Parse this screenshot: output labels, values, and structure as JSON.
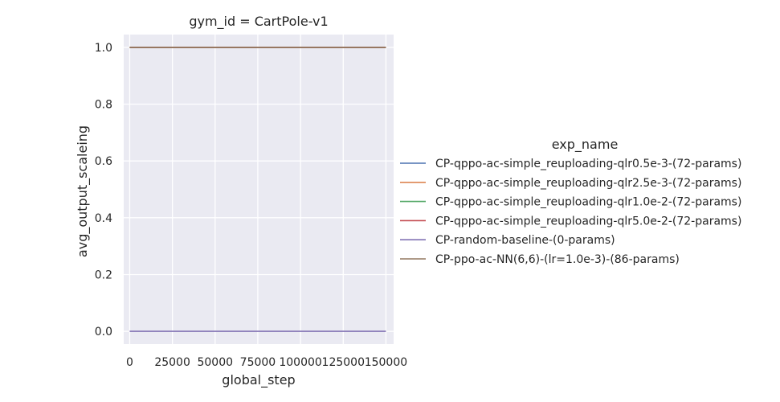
{
  "chart_data": {
    "type": "line",
    "title": "gym_id = CartPole-v1",
    "xlabel": "global_step",
    "ylabel": "avg_output_scaleing",
    "xlim": [
      -3500,
      154500
    ],
    "ylim": [
      -0.045,
      1.045
    ],
    "xticks": [
      0,
      25000,
      50000,
      75000,
      100000,
      125000,
      150000
    ],
    "xtick_labels": [
      "0",
      "25000",
      "50000",
      "75000",
      "100000",
      "125000",
      "150000"
    ],
    "yticks": [
      0.0,
      0.2,
      0.4,
      0.6,
      0.8,
      1.0
    ],
    "ytick_labels": [
      "0.0",
      "0.2",
      "0.4",
      "0.6",
      "0.8",
      "1.0"
    ],
    "grid": true,
    "legend_title": "exp_name",
    "legend_placement": "right",
    "series": [
      {
        "name": "CP-qppo-ac-simple_reuploading-qlr0.5e-3-(72-params)",
        "color": "#4c72b0",
        "x": [
          0,
          150000
        ],
        "y": [
          1.0,
          1.0
        ]
      },
      {
        "name": "CP-qppo-ac-simple_reuploading-qlr2.5e-3-(72-params)",
        "color": "#dd8452",
        "x": [
          0,
          150000
        ],
        "y": [
          1.0,
          1.0
        ]
      },
      {
        "name": "CP-qppo-ac-simple_reuploading-qlr1.0e-2-(72-params)",
        "color": "#55a868",
        "x": [
          0,
          150000
        ],
        "y": [
          1.0,
          1.0
        ]
      },
      {
        "name": "CP-qppo-ac-simple_reuploading-qlr5.0e-2-(72-params)",
        "color": "#c44e52",
        "x": [
          0,
          150000
        ],
        "y": [
          1.0,
          1.0
        ]
      },
      {
        "name": "CP-random-baseline-(0-params)",
        "color": "#8172b3",
        "x": [
          0,
          150000
        ],
        "y": [
          0.0,
          0.0
        ]
      },
      {
        "name": "CP-ppo-ac-NN(6,6)-(lr=1.0e-3)-(86-params)",
        "color": "#937860",
        "x": [
          0,
          150000
        ],
        "y": [
          1.0,
          1.0
        ]
      }
    ]
  }
}
